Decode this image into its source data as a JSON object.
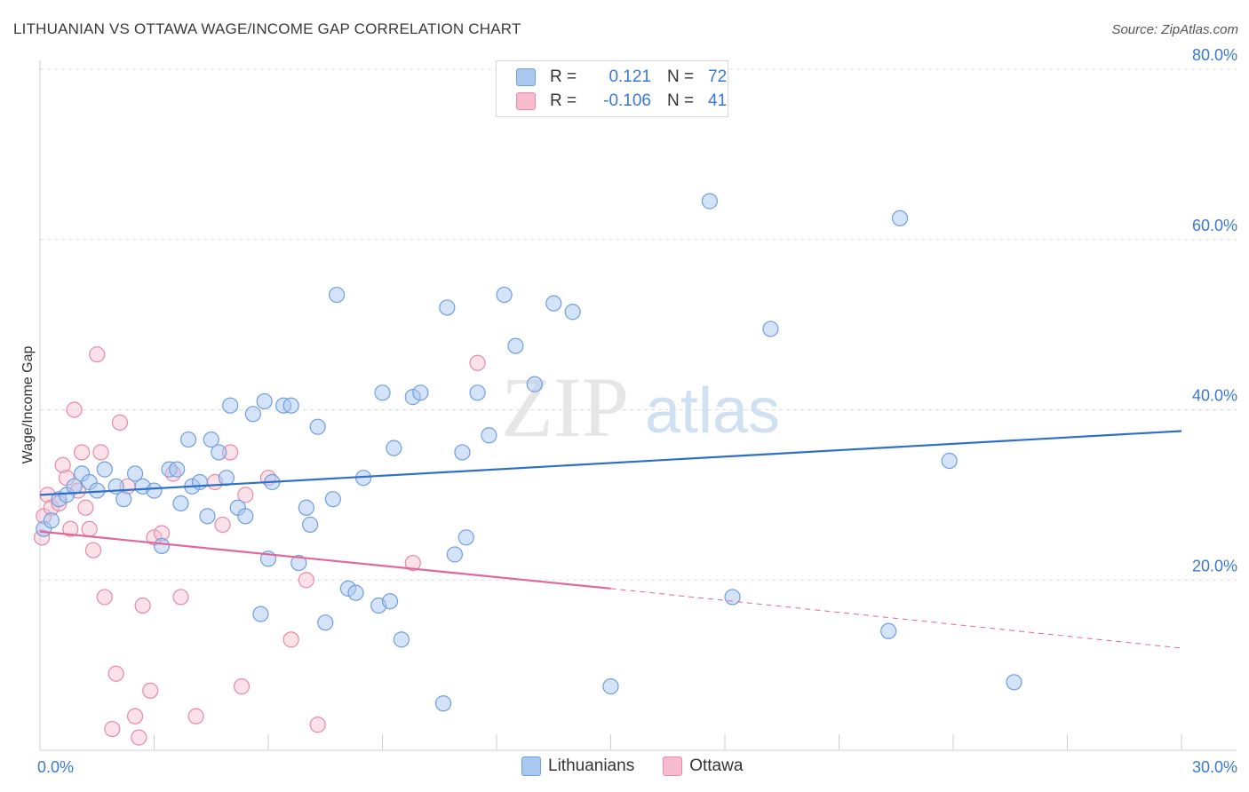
{
  "header": {
    "title": "LITHUANIAN VS OTTAWA WAGE/INCOME GAP CORRELATION CHART",
    "source": "Source: ZipAtlas.com"
  },
  "watermark": {
    "zip": "ZIP",
    "atlas": "atlas"
  },
  "legend": {
    "rows": [
      {
        "r_label": "R =",
        "r_value": "0.121",
        "n_label": "N =",
        "n_value": "72",
        "color": "#a9c8f0"
      },
      {
        "r_label": "R =",
        "r_value": "-0.106",
        "n_label": "N =",
        "n_value": "41",
        "color": "#f6bccd"
      }
    ]
  },
  "bottom_legend": {
    "items": [
      {
        "label": "Lithuanians",
        "color": "#a9c8f0"
      },
      {
        "label": "Ottawa",
        "color": "#f6bccd"
      }
    ]
  },
  "colors": {
    "blue_fill": "#a9c8f0",
    "blue_stroke": "#6f9fde",
    "blue_line": "#2f6fcc",
    "pink_fill": "#f6bccd",
    "pink_stroke": "#e68aa7",
    "pink_line": "#e0679a",
    "tick_text": "#3a78d4",
    "grid": "#dcdcdc"
  },
  "chart_data": {
    "type": "scatter",
    "title": "LITHUANIAN VS OTTAWA WAGE/INCOME GAP CORRELATION CHART",
    "xlabel": "",
    "ylabel": "Wage/Income Gap",
    "xlim": [
      0,
      30
    ],
    "ylim": [
      0,
      80
    ],
    "x_tick_labels": [
      {
        "value": 0,
        "label": "0.0%"
      },
      {
        "value": 30,
        "label": "30.0%"
      }
    ],
    "y_tick_labels": [
      {
        "value": 20,
        "label": "20.0%"
      },
      {
        "value": 40,
        "label": "40.0%"
      },
      {
        "value": 60,
        "label": "60.0%"
      },
      {
        "value": 80,
        "label": "80.0%"
      }
    ],
    "grid": true,
    "legend_position": "top-center",
    "series": [
      {
        "name": "Lithuanians",
        "points": [
          [
            0.1,
            26.0
          ],
          [
            0.3,
            27.0
          ],
          [
            0.5,
            29.5
          ],
          [
            0.7,
            30.0
          ],
          [
            0.9,
            31.0
          ],
          [
            1.1,
            32.5
          ],
          [
            1.3,
            31.5
          ],
          [
            1.5,
            30.5
          ],
          [
            1.7,
            33.0
          ],
          [
            2.0,
            31.0
          ],
          [
            2.2,
            29.5
          ],
          [
            2.5,
            32.5
          ],
          [
            2.7,
            31.0
          ],
          [
            3.0,
            30.5
          ],
          [
            3.2,
            24.0
          ],
          [
            3.4,
            33.0
          ],
          [
            3.6,
            33.0
          ],
          [
            3.7,
            29.0
          ],
          [
            3.9,
            36.5
          ],
          [
            4.0,
            31.0
          ],
          [
            4.2,
            31.5
          ],
          [
            4.4,
            27.5
          ],
          [
            4.5,
            36.5
          ],
          [
            4.7,
            35.0
          ],
          [
            4.9,
            32.0
          ],
          [
            5.0,
            40.5
          ],
          [
            5.2,
            28.5
          ],
          [
            5.4,
            27.5
          ],
          [
            5.6,
            39.5
          ],
          [
            5.8,
            16.0
          ],
          [
            5.9,
            41.0
          ],
          [
            6.0,
            22.5
          ],
          [
            6.1,
            31.5
          ],
          [
            6.4,
            40.5
          ],
          [
            6.6,
            40.5
          ],
          [
            6.8,
            22.0
          ],
          [
            7.0,
            28.5
          ],
          [
            7.1,
            26.5
          ],
          [
            7.3,
            38.0
          ],
          [
            7.5,
            15.0
          ],
          [
            7.7,
            29.5
          ],
          [
            7.8,
            53.5
          ],
          [
            8.1,
            19.0
          ],
          [
            8.3,
            18.5
          ],
          [
            8.5,
            32.0
          ],
          [
            8.9,
            17.0
          ],
          [
            9.0,
            42.0
          ],
          [
            9.2,
            17.5
          ],
          [
            9.3,
            35.5
          ],
          [
            9.5,
            13.0
          ],
          [
            9.8,
            41.5
          ],
          [
            10.0,
            42.0
          ],
          [
            10.6,
            5.5
          ],
          [
            10.7,
            52.0
          ],
          [
            10.9,
            23.0
          ],
          [
            11.1,
            35.0
          ],
          [
            11.2,
            25.0
          ],
          [
            11.5,
            42.0
          ],
          [
            11.8,
            37.0
          ],
          [
            12.2,
            53.5
          ],
          [
            12.5,
            47.5
          ],
          [
            13.0,
            43.0
          ],
          [
            13.5,
            52.5
          ],
          [
            14.0,
            51.5
          ],
          [
            15.0,
            7.5
          ],
          [
            17.6,
            64.5
          ],
          [
            18.2,
            18.0
          ],
          [
            19.2,
            49.5
          ],
          [
            22.3,
            14.0
          ],
          [
            22.6,
            62.5
          ],
          [
            23.9,
            34.0
          ],
          [
            25.6,
            8.0
          ]
        ],
        "trendline": {
          "x": [
            0,
            30
          ],
          "y": [
            30.0,
            37.5
          ]
        }
      },
      {
        "name": "Ottawa",
        "points": [
          [
            0.05,
            25.0
          ],
          [
            0.1,
            27.5
          ],
          [
            0.2,
            30.0
          ],
          [
            0.3,
            28.5
          ],
          [
            0.5,
            29.0
          ],
          [
            0.6,
            33.5
          ],
          [
            0.7,
            32.0
          ],
          [
            0.8,
            26.0
          ],
          [
            0.9,
            40.0
          ],
          [
            1.0,
            30.5
          ],
          [
            1.1,
            35.0
          ],
          [
            1.2,
            28.5
          ],
          [
            1.3,
            26.0
          ],
          [
            1.4,
            23.5
          ],
          [
            1.5,
            46.5
          ],
          [
            1.6,
            35.0
          ],
          [
            1.7,
            18.0
          ],
          [
            1.9,
            2.5
          ],
          [
            2.0,
            9.0
          ],
          [
            2.1,
            38.5
          ],
          [
            2.3,
            31.0
          ],
          [
            2.5,
            4.0
          ],
          [
            2.6,
            1.5
          ],
          [
            2.7,
            17.0
          ],
          [
            2.9,
            7.0
          ],
          [
            3.0,
            25.0
          ],
          [
            3.2,
            25.5
          ],
          [
            3.5,
            32.5
          ],
          [
            3.7,
            18.0
          ],
          [
            4.1,
            4.0
          ],
          [
            4.6,
            31.5
          ],
          [
            4.8,
            26.5
          ],
          [
            5.0,
            35.0
          ],
          [
            5.3,
            7.5
          ],
          [
            5.4,
            30.0
          ],
          [
            6.0,
            32.0
          ],
          [
            6.6,
            13.0
          ],
          [
            7.0,
            20.0
          ],
          [
            7.3,
            3.0
          ],
          [
            9.8,
            22.0
          ],
          [
            11.5,
            45.5
          ]
        ],
        "trendline": {
          "x": [
            0,
            15.0
          ],
          "y": [
            25.7,
            19.0
          ]
        },
        "trendline_extension": {
          "x": [
            15.0,
            30
          ],
          "y": [
            19.0,
            12.0
          ]
        }
      }
    ]
  }
}
